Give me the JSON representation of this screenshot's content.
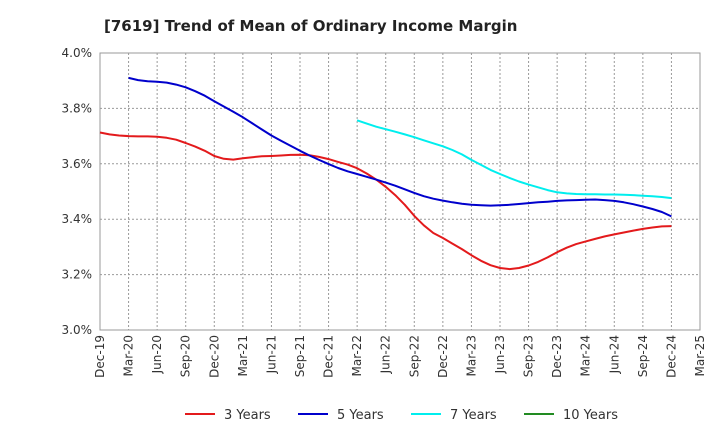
{
  "chart_data": {
    "type": "line",
    "title": "[7619]  Trend of Mean of Ordinary Income Margin",
    "xlabel": "",
    "ylabel": "",
    "x_ticks": [
      "Dec-19",
      "Mar-20",
      "Jun-20",
      "Sep-20",
      "Dec-20",
      "Mar-21",
      "Jun-21",
      "Sep-21",
      "Dec-21",
      "Mar-22",
      "Jun-22",
      "Sep-22",
      "Dec-22",
      "Mar-23",
      "Jun-23",
      "Sep-23",
      "Dec-23",
      "Mar-24",
      "Jun-24",
      "Sep-24",
      "Dec-24",
      "Mar-25"
    ],
    "y_ticks": [
      "3.0%",
      "3.2%",
      "3.4%",
      "3.6%",
      "3.8%",
      "4.0%"
    ],
    "ylim": [
      3.0,
      4.0
    ],
    "grid": true,
    "legend_position": "bottom",
    "series": [
      {
        "name": "3 Years",
        "color": "#e31a1c",
        "x": [
          "Dec-19",
          "Jan-20",
          "Feb-20",
          "Mar-20",
          "Apr-20",
          "May-20",
          "Jun-20",
          "Jul-20",
          "Aug-20",
          "Sep-20",
          "Oct-20",
          "Nov-20",
          "Dec-20",
          "Jan-21",
          "Feb-21",
          "Mar-21",
          "Apr-21",
          "May-21",
          "Jun-21",
          "Jul-21",
          "Aug-21",
          "Sep-21",
          "Oct-21",
          "Nov-21",
          "Dec-21",
          "Jan-22",
          "Feb-22",
          "Mar-22",
          "Apr-22",
          "May-22",
          "Jun-22",
          "Jul-22",
          "Aug-22",
          "Sep-22",
          "Oct-22",
          "Nov-22",
          "Dec-22",
          "Jan-23",
          "Feb-23",
          "Mar-23",
          "Apr-23",
          "May-23",
          "Jun-23",
          "Jul-23",
          "Aug-23",
          "Sep-23",
          "Oct-23",
          "Nov-23",
          "Dec-23",
          "Jan-24",
          "Feb-24",
          "Mar-24",
          "Apr-24",
          "May-24",
          "Jun-24",
          "Jul-24",
          "Aug-24",
          "Sep-24",
          "Oct-24",
          "Nov-24",
          "Dec-24"
        ],
        "values": [
          3.713,
          3.706,
          3.702,
          3.7,
          3.699,
          3.699,
          3.698,
          3.694,
          3.687,
          3.675,
          3.662,
          3.647,
          3.628,
          3.618,
          3.615,
          3.62,
          3.624,
          3.627,
          3.628,
          3.63,
          3.632,
          3.633,
          3.631,
          3.625,
          3.617,
          3.607,
          3.597,
          3.584,
          3.565,
          3.543,
          3.517,
          3.487,
          3.452,
          3.412,
          3.378,
          3.35,
          3.332,
          3.312,
          3.292,
          3.27,
          3.25,
          3.234,
          3.224,
          3.22,
          3.224,
          3.233,
          3.246,
          3.262,
          3.281,
          3.297,
          3.31,
          3.32,
          3.329,
          3.338,
          3.345,
          3.352,
          3.359,
          3.365,
          3.37,
          3.374,
          3.375
        ]
      },
      {
        "name": "5 Years",
        "color": "#0000cc",
        "x": [
          "Mar-20",
          "Apr-20",
          "May-20",
          "Jun-20",
          "Jul-20",
          "Aug-20",
          "Sep-20",
          "Oct-20",
          "Nov-20",
          "Dec-20",
          "Jan-21",
          "Feb-21",
          "Mar-21",
          "Apr-21",
          "May-21",
          "Jun-21",
          "Jul-21",
          "Aug-21",
          "Sep-21",
          "Oct-21",
          "Nov-21",
          "Dec-21",
          "Jan-22",
          "Feb-22",
          "Mar-22",
          "Apr-22",
          "May-22",
          "Jun-22",
          "Jul-22",
          "Aug-22",
          "Sep-22",
          "Oct-22",
          "Nov-22",
          "Dec-22",
          "Jan-23",
          "Feb-23",
          "Mar-23",
          "Apr-23",
          "May-23",
          "Jun-23",
          "Jul-23",
          "Aug-23",
          "Sep-23",
          "Oct-23",
          "Nov-23",
          "Dec-23",
          "Jan-24",
          "Feb-24",
          "Mar-24",
          "Apr-24",
          "May-24",
          "Jun-24",
          "Jul-24",
          "Aug-24",
          "Sep-24",
          "Oct-24",
          "Nov-24",
          "Dec-24"
        ],
        "values": [
          3.91,
          3.902,
          3.898,
          3.896,
          3.893,
          3.886,
          3.876,
          3.862,
          3.846,
          3.826,
          3.807,
          3.788,
          3.768,
          3.746,
          3.724,
          3.702,
          3.683,
          3.665,
          3.647,
          3.63,
          3.614,
          3.599,
          3.585,
          3.573,
          3.563,
          3.553,
          3.543,
          3.532,
          3.521,
          3.508,
          3.495,
          3.483,
          3.474,
          3.467,
          3.461,
          3.456,
          3.452,
          3.45,
          3.449,
          3.45,
          3.452,
          3.455,
          3.458,
          3.461,
          3.463,
          3.466,
          3.468,
          3.469,
          3.47,
          3.471,
          3.469,
          3.466,
          3.461,
          3.454,
          3.446,
          3.437,
          3.426,
          3.41
        ]
      },
      {
        "name": "7 Years",
        "color": "#00eeee",
        "x": [
          "Mar-22",
          "Apr-22",
          "May-22",
          "Jun-22",
          "Jul-22",
          "Aug-22",
          "Sep-22",
          "Oct-22",
          "Nov-22",
          "Dec-22",
          "Jan-23",
          "Feb-23",
          "Mar-23",
          "Apr-23",
          "May-23",
          "Jun-23",
          "Jul-23",
          "Aug-23",
          "Sep-23",
          "Oct-23",
          "Nov-23",
          "Dec-23",
          "Jan-24",
          "Feb-24",
          "Mar-24",
          "Apr-24",
          "May-24",
          "Jun-24",
          "Jul-24",
          "Aug-24",
          "Sep-24",
          "Oct-24",
          "Nov-24",
          "Dec-24"
        ],
        "values": [
          3.757,
          3.745,
          3.734,
          3.725,
          3.716,
          3.706,
          3.696,
          3.685,
          3.674,
          3.663,
          3.65,
          3.634,
          3.614,
          3.596,
          3.578,
          3.563,
          3.549,
          3.536,
          3.525,
          3.515,
          3.505,
          3.497,
          3.493,
          3.491,
          3.49,
          3.49,
          3.489,
          3.489,
          3.488,
          3.487,
          3.485,
          3.483,
          3.48,
          3.476
        ]
      },
      {
        "name": "10 Years",
        "color": "#228b22",
        "x": [],
        "values": []
      }
    ]
  }
}
